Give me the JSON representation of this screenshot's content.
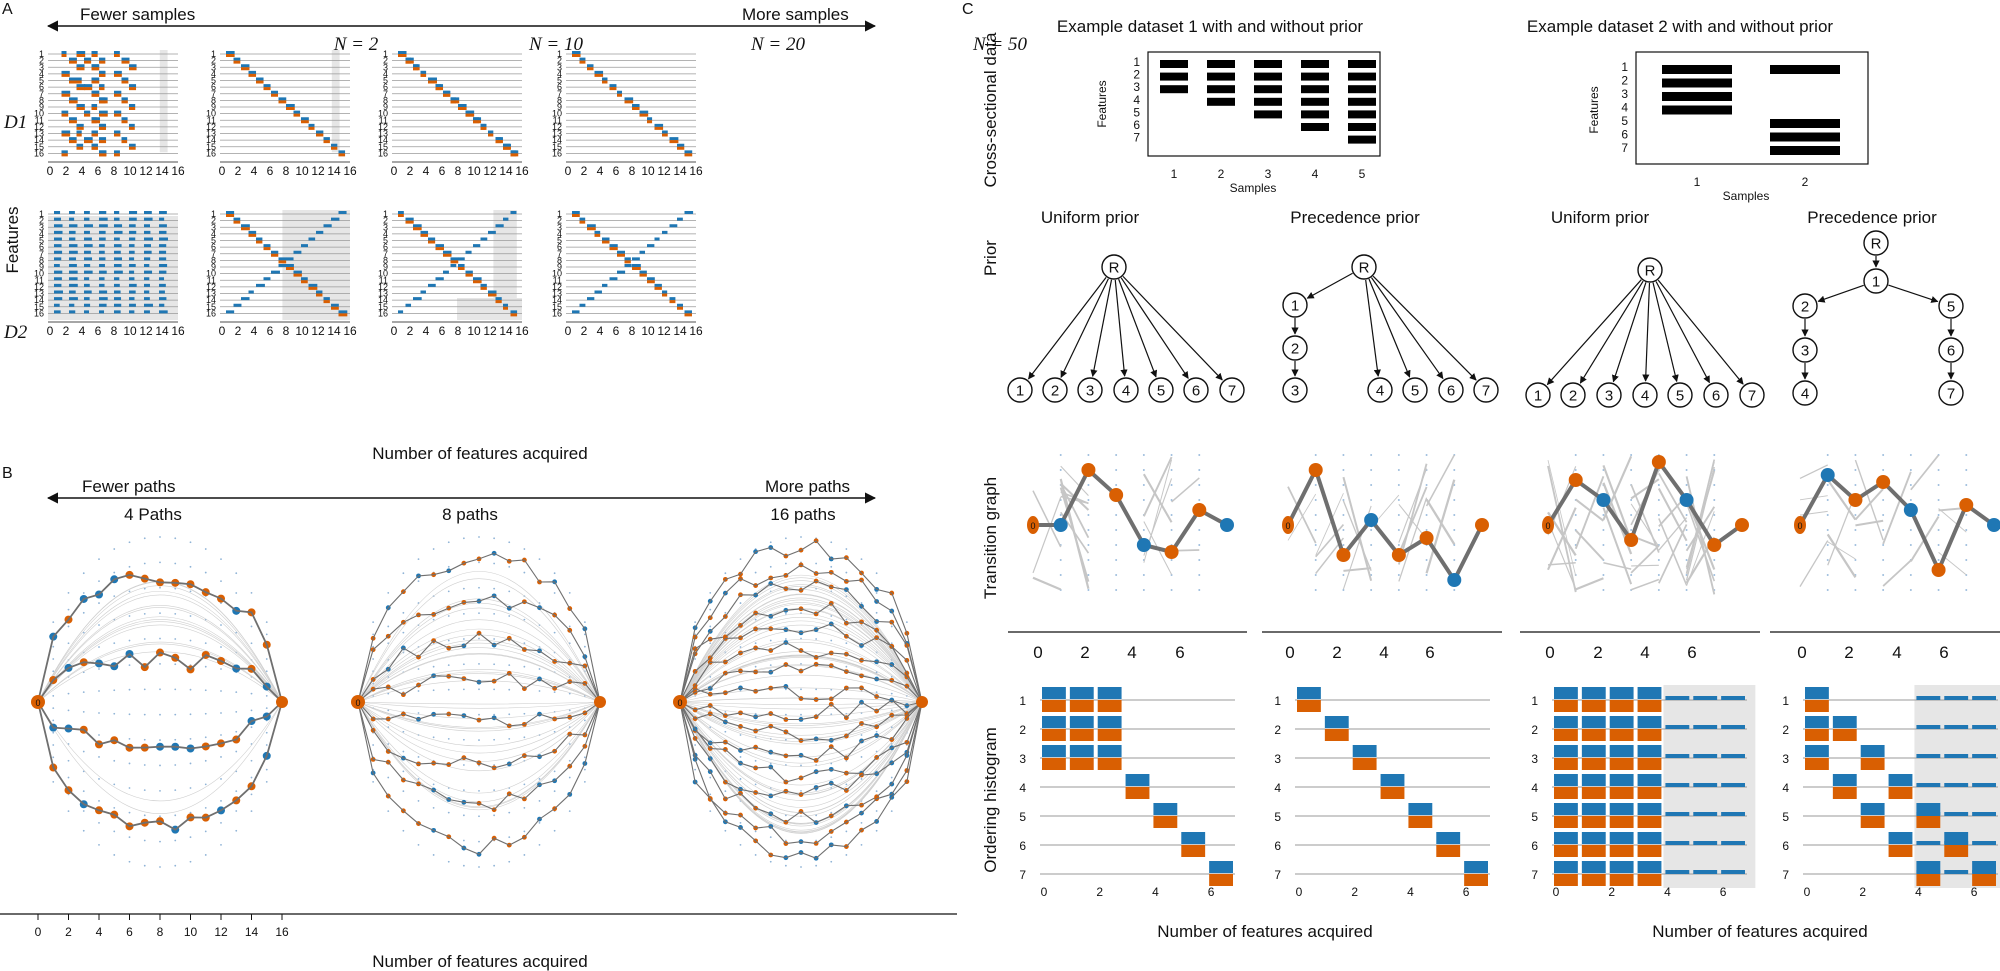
{
  "colors": {
    "blue": "#1f77b4",
    "orange": "#d95f02",
    "gray": "#777777",
    "shade": "#e6e6e6"
  },
  "panel_a": {
    "letter": "A",
    "arrow_left": "Fewer samples",
    "arrow_right": "More samples",
    "subplots": [
      "N = 2",
      "N = 10",
      "N = 20",
      "N = 50"
    ],
    "row_labels": [
      "D1",
      "D2"
    ],
    "ylabel": "Features",
    "xlabel": "Number of features acquired",
    "xticks": [
      "0",
      "2",
      "4",
      "6",
      "8",
      "10",
      "12",
      "14",
      "16"
    ],
    "yticks": [
      "1",
      "2",
      "3",
      "4",
      "5",
      "6",
      "7",
      "8",
      "9",
      "10",
      "11",
      "12",
      "13",
      "14",
      "15",
      "16"
    ]
  },
  "panel_b": {
    "letter": "B",
    "arrow_left": "Fewer paths",
    "arrow_right": "More paths",
    "subplots": [
      "4 Paths",
      "8 paths",
      "16 paths"
    ],
    "xlabel": "Number of features acquired",
    "xticks": [
      "0",
      "2",
      "4",
      "6",
      "8",
      "10",
      "12",
      "14",
      "16"
    ],
    "start_label": "0"
  },
  "panel_c": {
    "letter": "C",
    "dataset_titles": [
      "Example dataset 1 with and without prior",
      "Example dataset 2 with and without prior"
    ],
    "row_labels": [
      "Cross-sectional data",
      "Prior",
      "Transition graph",
      "Ordering histogram"
    ],
    "heatmap_ylabel": "Features",
    "heatmap_xlabel": "Samples",
    "heatmap1_xticks": [
      "1",
      "2",
      "3",
      "4",
      "5"
    ],
    "heatmap2_xticks": [
      "1",
      "2"
    ],
    "heatmap_yticks": [
      "1",
      "2",
      "3",
      "4",
      "5",
      "6",
      "7"
    ],
    "prior_titles": [
      "Uniform prior",
      "Precedence prior",
      "Uniform prior",
      "Precedence prior"
    ],
    "root_label": "R",
    "node_labels": [
      "1",
      "2",
      "3",
      "4",
      "5",
      "6",
      "7"
    ],
    "start_label": "0",
    "xticks": [
      "0",
      "2",
      "4",
      "6"
    ],
    "hist_yticks": [
      "1",
      "2",
      "3",
      "4",
      "5",
      "6",
      "7"
    ],
    "xlabel": "Number of features acquired"
  }
}
